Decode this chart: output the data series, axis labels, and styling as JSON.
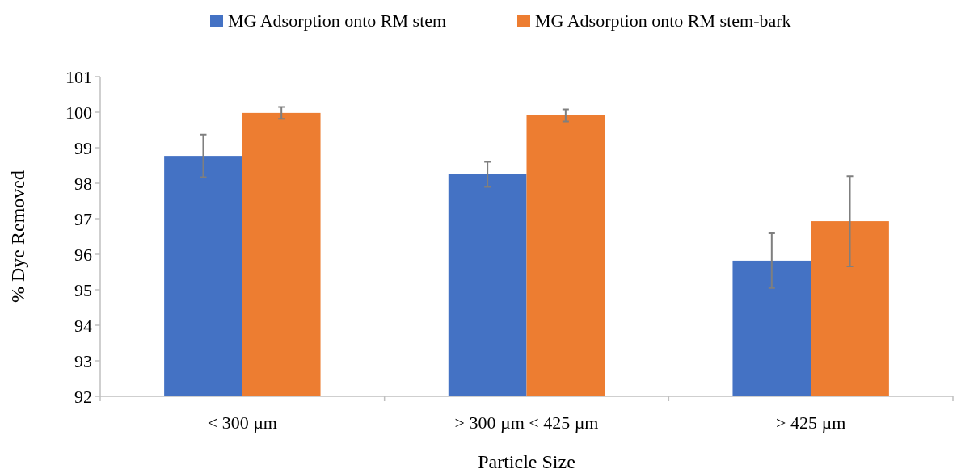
{
  "chart_data": {
    "type": "bar",
    "xlabel": "Particle Size",
    "ylabel": "% Dye Removed",
    "categories": [
      "< 300 µm",
      "> 300 µm < 425 µm",
      "> 425 µm"
    ],
    "series": [
      {
        "name": "MG Adsorption onto RM stem",
        "color": "#4472c4",
        "values": [
          98.77,
          98.25,
          95.82
        ],
        "errors": [
          0.6,
          0.35,
          0.77
        ]
      },
      {
        "name": "MG Adsorption onto RM stem-bark",
        "color": "#ed7d31",
        "values": [
          99.98,
          99.91,
          96.93
        ],
        "errors": [
          0.17,
          0.17,
          1.27
        ]
      }
    ],
    "ylim": [
      92,
      101
    ],
    "yticks": [
      92,
      93,
      94,
      95,
      96,
      97,
      98,
      99,
      100,
      101
    ],
    "grid": false,
    "legend": "top"
  }
}
